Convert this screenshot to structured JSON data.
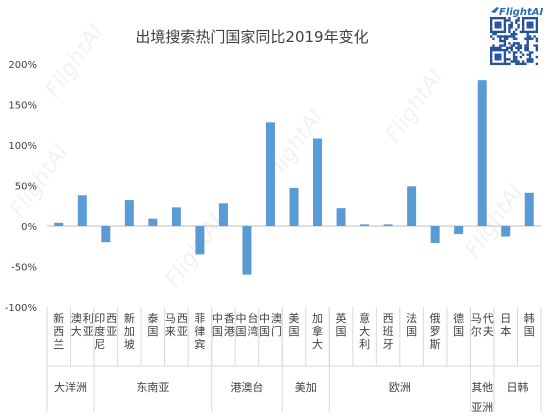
{
  "brand": {
    "logo_text": "FlightAI",
    "watermark_text": "FlightAI"
  },
  "colors": {
    "bar": "#5b9bd5",
    "axis": "#a6a6a6",
    "grid": "#d9d9d9",
    "text": "#404040",
    "zero_line": "#bfbfbf"
  },
  "chart_data": {
    "type": "bar",
    "title": "出境搜索热门国家同比2019年变化",
    "xlabel": "",
    "ylabel": "",
    "ylim": [
      -100,
      200
    ],
    "yticks": [
      -100,
      -50,
      0,
      50,
      100,
      150,
      200
    ],
    "ytick_labels": [
      "-100%",
      "-50%",
      "0%",
      "50%",
      "100%",
      "150%",
      "200%"
    ],
    "grid": false,
    "legend": "none",
    "categories": [
      "新西兰",
      "澳大利亚",
      "印度尼西亚",
      "新加坡",
      "泰国",
      "马来西亚",
      "菲律宾",
      "中国香港",
      "中国台湾",
      "中国澳门",
      "美国",
      "加拿大",
      "英国",
      "意大利",
      "西班牙",
      "法国",
      "俄罗斯",
      "德国",
      "马尔代夫",
      "日本",
      "韩国"
    ],
    "values": [
      4,
      38,
      -20,
      32,
      9,
      23,
      -35,
      28,
      -60,
      128,
      47,
      108,
      22,
      2,
      2,
      49,
      -21,
      -10,
      180,
      -13,
      41
    ],
    "groups": [
      {
        "name": "大洋洲",
        "count": 2
      },
      {
        "name": "东南亚",
        "count": 5
      },
      {
        "name": "港澳台",
        "count": 3
      },
      {
        "name": "美加",
        "count": 2
      },
      {
        "name": "欧洲",
        "count": 6
      },
      {
        "name": "其他亚洲",
        "count": 1
      },
      {
        "name": "日韩",
        "count": 2
      }
    ]
  }
}
